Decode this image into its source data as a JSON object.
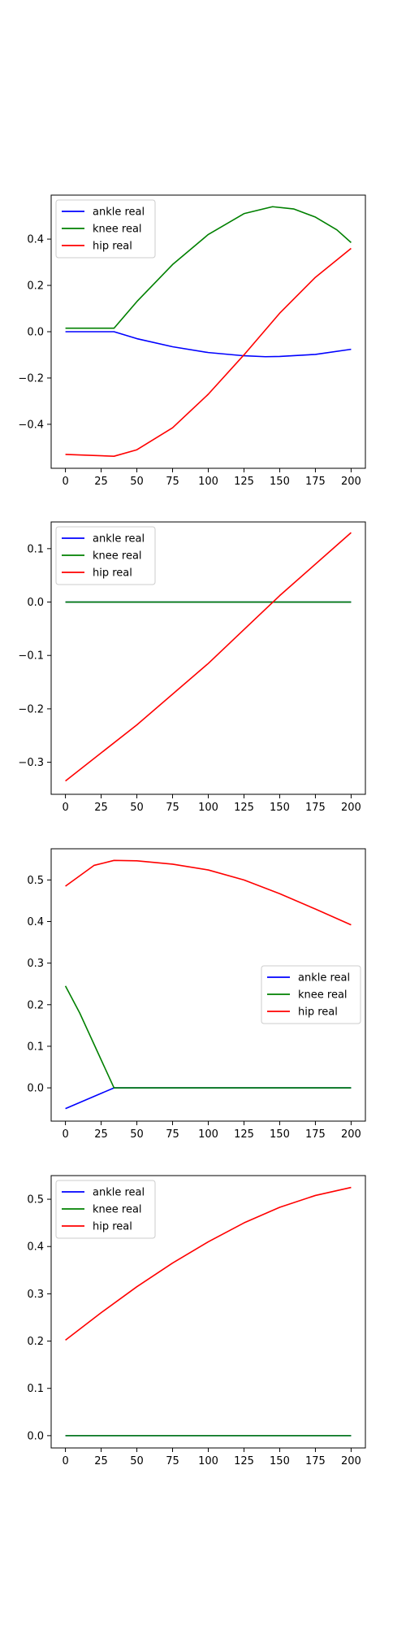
{
  "chart_data": [
    {
      "type": "line",
      "xlim": [
        -10,
        210
      ],
      "ylim": [
        -0.59,
        0.59
      ],
      "xticks": [
        0,
        25,
        50,
        75,
        100,
        125,
        150,
        175,
        200
      ],
      "xtick_labels": [
        "0",
        "25",
        "50",
        "75",
        "100",
        "125",
        "150",
        "175",
        "200"
      ],
      "yticks": [
        -0.4,
        -0.2,
        0.0,
        0.2,
        0.4
      ],
      "ytick_labels": [
        "−0.4",
        "−0.2",
        "0.0",
        "0.2",
        "0.4"
      ],
      "grid": false,
      "legend": "upper left",
      "series": [
        {
          "name": "ankle real",
          "color": "#0000ff",
          "x": [
            0,
            34,
            50,
            75,
            100,
            125,
            140,
            150,
            175,
            200
          ],
          "y": [
            0.0,
            0.0,
            -0.03,
            -0.065,
            -0.09,
            -0.104,
            -0.108,
            -0.107,
            -0.098,
            -0.076
          ]
        },
        {
          "name": "knee real",
          "color": "#008000",
          "x": [
            0,
            34,
            50,
            75,
            100,
            125,
            145,
            160,
            175,
            190,
            200
          ],
          "y": [
            0.015,
            0.015,
            0.13,
            0.29,
            0.42,
            0.51,
            0.54,
            0.53,
            0.495,
            0.44,
            0.385
          ]
        },
        {
          "name": "hip real",
          "color": "#ff0000",
          "x": [
            0,
            34,
            50,
            75,
            100,
            125,
            150,
            175,
            200
          ],
          "y": [
            -0.53,
            -0.538,
            -0.51,
            -0.415,
            -0.27,
            -0.1,
            0.08,
            0.235,
            0.36
          ]
        }
      ]
    },
    {
      "type": "line",
      "xlim": [
        -10,
        210
      ],
      "ylim": [
        -0.36,
        0.15
      ],
      "xticks": [
        0,
        25,
        50,
        75,
        100,
        125,
        150,
        175,
        200
      ],
      "xtick_labels": [
        "0",
        "25",
        "50",
        "75",
        "100",
        "125",
        "150",
        "175",
        "200"
      ],
      "yticks": [
        -0.3,
        -0.2,
        -0.1,
        0.0,
        0.1
      ],
      "ytick_labels": [
        "−0.3",
        "−0.2",
        "−0.1",
        "0.0",
        "0.1"
      ],
      "grid": false,
      "legend": "upper left",
      "series": [
        {
          "name": "ankle real",
          "color": "#0000ff",
          "x": [
            0,
            200
          ],
          "y": [
            0.0,
            0.0
          ]
        },
        {
          "name": "knee real",
          "color": "#008000",
          "x": [
            0,
            200
          ],
          "y": [
            0.0,
            0.0
          ]
        },
        {
          "name": "hip real",
          "color": "#ff0000",
          "x": [
            0,
            50,
            100,
            150,
            200
          ],
          "y": [
            -0.335,
            -0.23,
            -0.115,
            0.012,
            0.13
          ]
        }
      ]
    },
    {
      "type": "line",
      "xlim": [
        -10,
        210
      ],
      "ylim": [
        -0.08,
        0.575
      ],
      "xticks": [
        0,
        25,
        50,
        75,
        100,
        125,
        150,
        175,
        200
      ],
      "xtick_labels": [
        "0",
        "25",
        "50",
        "75",
        "100",
        "125",
        "150",
        "175",
        "200"
      ],
      "yticks": [
        0.0,
        0.1,
        0.2,
        0.3,
        0.4,
        0.5
      ],
      "ytick_labels": [
        "0.0",
        "0.1",
        "0.2",
        "0.3",
        "0.4",
        "0.5"
      ],
      "grid": false,
      "legend": "center right",
      "series": [
        {
          "name": "ankle real",
          "color": "#0000ff",
          "x": [
            0,
            34,
            200
          ],
          "y": [
            -0.05,
            0.0,
            0.0
          ]
        },
        {
          "name": "knee real",
          "color": "#008000",
          "x": [
            0,
            10,
            20,
            34,
            200
          ],
          "y": [
            0.245,
            0.18,
            0.105,
            0.0,
            0.0
          ]
        },
        {
          "name": "hip real",
          "color": "#ff0000",
          "x": [
            0,
            10,
            20,
            34,
            50,
            75,
            100,
            125,
            150,
            175,
            200
          ],
          "y": [
            0.485,
            0.51,
            0.535,
            0.547,
            0.546,
            0.538,
            0.524,
            0.5,
            0.467,
            0.43,
            0.392
          ]
        }
      ]
    },
    {
      "type": "line",
      "xlim": [
        -10,
        210
      ],
      "ylim": [
        -0.026,
        0.55
      ],
      "xticks": [
        0,
        25,
        50,
        75,
        100,
        125,
        150,
        175,
        200
      ],
      "xtick_labels": [
        "0",
        "25",
        "50",
        "75",
        "100",
        "125",
        "150",
        "175",
        "200"
      ],
      "yticks": [
        0.0,
        0.1,
        0.2,
        0.3,
        0.4,
        0.5
      ],
      "ytick_labels": [
        "0.0",
        "0.1",
        "0.2",
        "0.3",
        "0.4",
        "0.5"
      ],
      "grid": false,
      "legend": "upper left",
      "series": [
        {
          "name": "ankle real",
          "color": "#0000ff",
          "x": [
            0,
            200
          ],
          "y": [
            0.0,
            0.0
          ]
        },
        {
          "name": "knee real",
          "color": "#008000",
          "x": [
            0,
            200
          ],
          "y": [
            0.0,
            0.0
          ]
        },
        {
          "name": "hip real",
          "color": "#ff0000",
          "x": [
            0,
            25,
            50,
            75,
            100,
            125,
            150,
            175,
            200
          ],
          "y": [
            0.202,
            0.26,
            0.315,
            0.365,
            0.41,
            0.45,
            0.483,
            0.508,
            0.525
          ]
        }
      ]
    }
  ]
}
